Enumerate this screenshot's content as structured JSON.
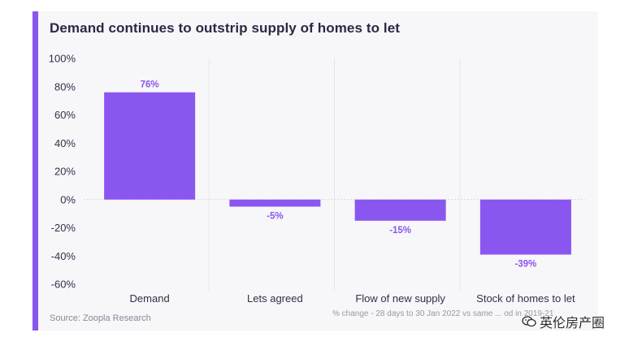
{
  "title": "Demand continues to outstrip supply of homes to let",
  "source": "Source: Zoopla Research",
  "note": "% change - 28 days to 30 Jan 2022 vs same ... od in 2019-21",
  "watermark": {
    "icon": "wechat-icon",
    "text": "英伦房产圈"
  },
  "colors": {
    "accent": "#8a56f0",
    "bar": "#8a56f0",
    "text": "#34304a",
    "background": "#f7f6f8"
  },
  "chart_data": {
    "type": "bar",
    "title": "Demand continues to outstrip supply of homes to let",
    "xlabel": "",
    "ylabel": "",
    "categories": [
      "Demand",
      "Lets agreed",
      "Flow of new supply",
      "Stock of homes to let"
    ],
    "values": [
      76,
      -5,
      -15,
      -39
    ],
    "data_labels": [
      "76%",
      "-5%",
      "-15%",
      "-39%"
    ],
    "ylim": [
      -60,
      100
    ],
    "yticks": [
      100,
      80,
      60,
      40,
      20,
      0,
      -20,
      -40,
      -60
    ],
    "ytick_labels": [
      "100%",
      "80%",
      "60%",
      "40%",
      "20%",
      "0%",
      "-20%",
      "-40%",
      "-60%"
    ],
    "grid": "vertical separators",
    "legend": "none"
  }
}
